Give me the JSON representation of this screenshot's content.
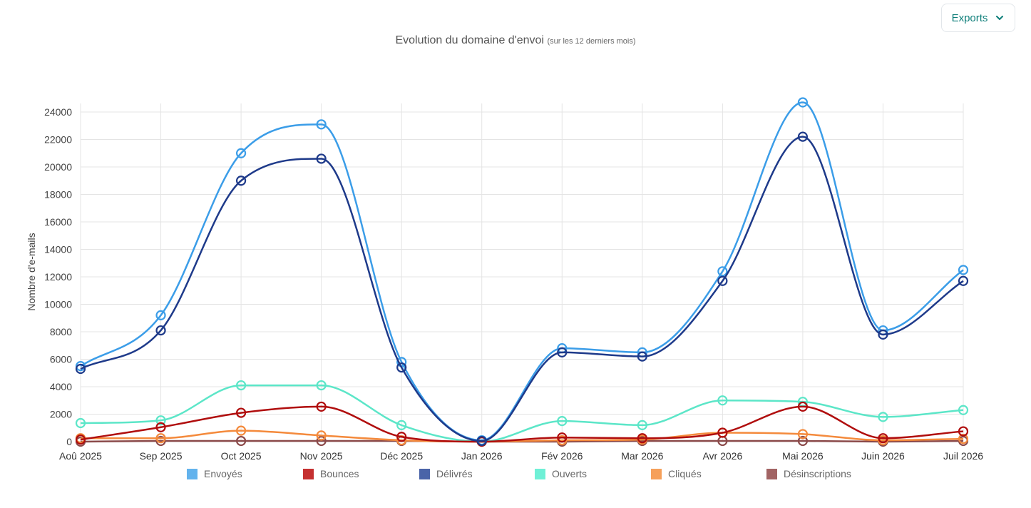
{
  "toolbar": {
    "exports_label": "Exports",
    "exports_icon": "chevron-down-icon"
  },
  "chart_data": {
    "type": "line",
    "title": "Evolution du domaine d'envoi",
    "subtitle": "(sur les 12 derniers mois)",
    "xlabel": "",
    "ylabel": "Nombre d'e-mails",
    "ylim": [
      0,
      24000
    ],
    "yticks": [
      "0",
      "2000",
      "4000",
      "6000",
      "8000",
      "10000",
      "12000",
      "14000",
      "16000",
      "18000",
      "20000",
      "22000",
      "24000"
    ],
    "grid": true,
    "legend_position": "bottom",
    "categories": [
      "Aoû 2025",
      "Sep 2025",
      "Oct 2025",
      "Nov 2025",
      "Déc 2025",
      "Jan 2026",
      "Fév 2026",
      "Mar 2026",
      "Avr 2026",
      "Mai 2026",
      "Juin 2026",
      "Juil 2026"
    ],
    "series": [
      {
        "name": "Envoyés",
        "color": "#3b9de8",
        "legend_color": "#63b3ed",
        "values": [
          5500,
          9200,
          21000,
          23100,
          5800,
          100,
          6800,
          6500,
          12400,
          24700,
          8100,
          12500
        ]
      },
      {
        "name": "Bounces",
        "color": "#b00d0d",
        "legend_color": "#c53030",
        "values": [
          150,
          1050,
          2100,
          2550,
          350,
          0,
          300,
          250,
          650,
          2550,
          250,
          750
        ]
      },
      {
        "name": "Délivrés",
        "color": "#1e3a8a",
        "legend_color": "#4a64a8",
        "values": [
          5300,
          8100,
          19000,
          20600,
          5400,
          50,
          6500,
          6200,
          11700,
          22200,
          7800,
          11700
        ]
      },
      {
        "name": "Ouverts",
        "color": "#5ce6c8",
        "legend_color": "#6ff0d6",
        "values": [
          1350,
          1550,
          4100,
          4100,
          1200,
          0,
          1500,
          1200,
          3000,
          2900,
          1800,
          2300
        ]
      },
      {
        "name": "Cliqués",
        "color": "#f48a3c",
        "legend_color": "#f6a05a",
        "values": [
          250,
          250,
          800,
          450,
          100,
          0,
          100,
          150,
          650,
          550,
          100,
          200
        ]
      },
      {
        "name": "Désinscriptions",
        "color": "#8b4a4a",
        "legend_color": "#a26464",
        "values": [
          0,
          50,
          50,
          50,
          50,
          0,
          0,
          50,
          50,
          50,
          0,
          50
        ]
      }
    ]
  }
}
